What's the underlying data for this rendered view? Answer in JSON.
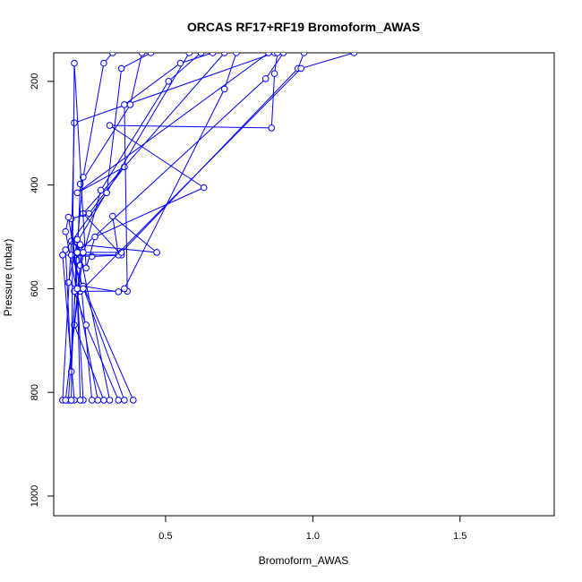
{
  "chart_data": {
    "type": "line",
    "title": "ORCAS RF17+RF19 Bromoform_AWAS",
    "xlabel": "Bromoform_AWAS",
    "ylabel": "Pressure (mbar)",
    "xlim": [
      0.12,
      1.82
    ],
    "ylim": [
      1038,
      145
    ],
    "y_reversed": true,
    "x_ticks": [
      0.5,
      1.0,
      1.5
    ],
    "x_tick_labels": [
      "0.5",
      "1.0",
      "1.5"
    ],
    "y_ticks": [
      200,
      400,
      600,
      800,
      1000
    ],
    "y_tick_labels": [
      "200",
      "400",
      "600",
      "800",
      "1000"
    ],
    "grid": false,
    "legend": "none",
    "line_color": "#0000ff",
    "marker": "open-circle",
    "series": [
      {
        "points": [
          [
            0.15,
            815
          ],
          [
            0.18,
            508
          ],
          [
            0.19,
            280
          ],
          [
            0.87,
            145
          ]
        ]
      },
      {
        "points": [
          [
            0.17,
            815
          ],
          [
            0.2,
            545
          ],
          [
            0.21,
            398
          ],
          [
            0.38,
            245
          ],
          [
            0.42,
            145
          ]
        ]
      },
      {
        "points": [
          [
            0.19,
            815
          ],
          [
            0.15,
            535
          ],
          [
            0.25,
            538
          ],
          [
            0.35,
            535
          ],
          [
            0.22,
            455
          ],
          [
            0.7,
            145
          ]
        ]
      },
      {
        "points": [
          [
            0.22,
            815
          ],
          [
            0.2,
            600
          ],
          [
            0.18,
            465
          ],
          [
            0.24,
            455
          ],
          [
            0.36,
            365
          ],
          [
            0.2,
            415
          ],
          [
            0.85,
            145
          ]
        ]
      },
      {
        "points": [
          [
            0.25,
            815
          ],
          [
            0.2,
            512
          ],
          [
            0.22,
            385
          ],
          [
            0.29,
            165
          ],
          [
            0.32,
            145
          ]
        ]
      },
      {
        "points": [
          [
            0.27,
            815
          ],
          [
            0.16,
            490
          ],
          [
            0.17,
            462
          ],
          [
            0.21,
            605
          ],
          [
            0.17,
            588
          ],
          [
            0.2,
            510
          ],
          [
            0.58,
            145
          ]
        ]
      },
      {
        "points": [
          [
            0.29,
            815
          ],
          [
            0.19,
            670
          ],
          [
            0.21,
            555
          ],
          [
            0.28,
            410
          ],
          [
            0.51,
            200
          ],
          [
            0.62,
            145
          ]
        ]
      },
      {
        "points": [
          [
            0.31,
            815
          ],
          [
            0.2,
            505
          ],
          [
            0.18,
            760
          ],
          [
            0.16,
            525
          ],
          [
            0.3,
            415
          ],
          [
            0.35,
            175
          ],
          [
            0.45,
            145
          ]
        ]
      },
      {
        "points": [
          [
            0.34,
            815
          ],
          [
            0.23,
            670
          ],
          [
            0.19,
            605
          ],
          [
            0.37,
            605
          ],
          [
            0.36,
            245
          ],
          [
            0.55,
            165
          ],
          [
            0.66,
            145
          ]
        ]
      },
      {
        "points": [
          [
            0.36,
            815
          ],
          [
            0.18,
            535
          ],
          [
            0.34,
            535
          ],
          [
            0.32,
            460
          ],
          [
            0.47,
            530
          ],
          [
            0.21,
            515
          ],
          [
            0.2,
            530
          ],
          [
            0.84,
            195
          ],
          [
            0.9,
            145
          ]
        ]
      },
      {
        "points": [
          [
            0.39,
            815
          ],
          [
            0.22,
            595
          ],
          [
            0.34,
            606
          ],
          [
            0.36,
            600
          ],
          [
            0.7,
            215
          ],
          [
            0.74,
            145
          ]
        ]
      },
      {
        "points": [
          [
            0.18,
            815
          ],
          [
            0.19,
            165
          ],
          [
            0.23,
            560
          ],
          [
            0.26,
            500
          ],
          [
            0.63,
            405
          ],
          [
            0.31,
            285
          ],
          [
            0.86,
            290
          ],
          [
            0.87,
            185
          ],
          [
            0.88,
            145
          ]
        ]
      },
      {
        "points": [
          [
            0.16,
            815
          ],
          [
            0.22,
            530
          ],
          [
            0.35,
            530
          ],
          [
            0.95,
            175
          ],
          [
            0.97,
            145
          ]
        ]
      },
      {
        "points": [
          [
            0.21,
            815
          ],
          [
            0.2,
            600
          ],
          [
            0.22,
            600
          ],
          [
            0.96,
            175
          ],
          [
            1.14,
            145
          ]
        ]
      }
    ]
  }
}
